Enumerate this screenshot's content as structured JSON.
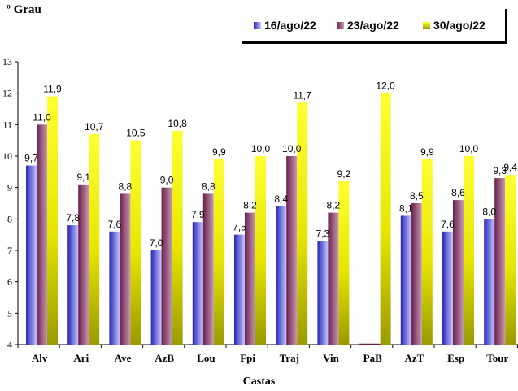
{
  "chart_data": {
    "type": "bar",
    "title": "",
    "ylabel": "º Grau",
    "xlabel": "Castas",
    "ylim": [
      4,
      13
    ],
    "yticks": [
      4,
      5,
      6,
      7,
      8,
      9,
      10,
      11,
      12,
      13
    ],
    "categories": [
      "Alv",
      "Ari",
      "Ave",
      "AzB",
      "Lou",
      "Fpi",
      "Traj",
      "Vin",
      "PaB",
      "AzT",
      "Esp",
      "Tour"
    ],
    "series": [
      {
        "name": "16/ago/22",
        "values": [
          9.7,
          7.8,
          7.6,
          7.0,
          7.9,
          7.5,
          8.4,
          7.3,
          null,
          8.1,
          7.6,
          8.0
        ],
        "labels": [
          "9,7",
          "7,8",
          "7,6",
          "7,0",
          "7,9",
          "7,5",
          "8,4",
          "7,3",
          "",
          "8,1",
          "7,6",
          "8,0"
        ]
      },
      {
        "name": "23/ago/22",
        "values": [
          11.0,
          9.1,
          8.8,
          9.0,
          8.8,
          8.2,
          10.0,
          8.2,
          null,
          8.5,
          8.6,
          9.3
        ],
        "labels": [
          "11,0",
          "9,1",
          "8,8",
          "9,0",
          "8,8",
          "8,2",
          "10,0",
          "8,2",
          "",
          "8,5",
          "8,6",
          "9,3"
        ]
      },
      {
        "name": "30/ago/22",
        "values": [
          11.9,
          10.7,
          10.5,
          10.8,
          9.9,
          10.0,
          11.7,
          9.2,
          12.0,
          9.9,
          10.0,
          9.4
        ],
        "labels": [
          "11,9",
          "10,7",
          "10,5",
          "10,8",
          "9,9",
          "10,0",
          "11,7",
          "9,2",
          "12,0",
          "9,9",
          "10,0",
          "9,4"
        ]
      }
    ],
    "legend_position": "top-right",
    "grid": false,
    "colors": {
      "s1_light": "#c6c6ff",
      "s1_dark": "#2626b8",
      "s2_light": "#c69ab6",
      "s2_dark": "#6b1f4a",
      "s3_light": "#ffff33",
      "s3_dark": "#9a9a00"
    }
  }
}
